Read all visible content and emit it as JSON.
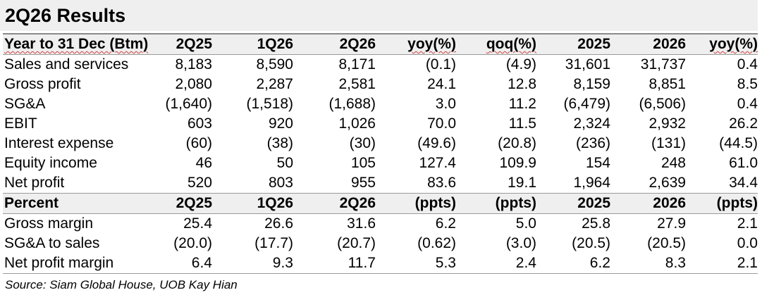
{
  "title": "2Q26 Results",
  "source": "Source: Siam Global House, UOB Kay Hian",
  "header1": [
    "Year to 31 Dec (Btm)",
    "2Q25",
    "1Q26",
    "2Q26",
    "yoy(%)",
    "qoq(%)",
    "2025",
    "2026",
    "yoy(%)"
  ],
  "rows1": [
    [
      "Sales and services",
      "8,183",
      "8,590",
      "8,171",
      "(0.1)",
      "(4.9)",
      "31,601",
      "31,737",
      "0.4"
    ],
    [
      "Gross profit",
      "2,080",
      "2,287",
      "2,581",
      "24.1",
      "12.8",
      "8,159",
      "8,851",
      "8.5"
    ],
    [
      "SG&A",
      "(1,640)",
      "(1,518)",
      "(1,688)",
      "3.0",
      "11.2",
      "(6,479)",
      "(6,506)",
      "0.4"
    ],
    [
      "EBIT",
      "603",
      "920",
      "1,026",
      "70.0",
      "11.5",
      "2,324",
      "2,932",
      "26.2"
    ],
    [
      "Interest expense",
      "(60)",
      "(38)",
      "(30)",
      "(49.6)",
      "(20.8)",
      "(236)",
      "(131)",
      "(44.5)"
    ],
    [
      "Equity income",
      "46",
      "50",
      "105",
      "127.4",
      "109.9",
      "154",
      "248",
      "61.0"
    ],
    [
      "Net profit",
      "520",
      "803",
      "955",
      "83.6",
      "19.1",
      "1,964",
      "2,639",
      "34.4"
    ]
  ],
  "header2": [
    "Percent",
    "2Q25",
    "1Q26",
    "2Q26",
    "(ppts)",
    "(ppts)",
    "2025",
    "2026",
    "(ppts)"
  ],
  "rows2": [
    [
      "Gross margin",
      "25.4",
      "26.6",
      "31.6",
      "6.2",
      "5.0",
      "25.8",
      "27.9",
      "2.1"
    ],
    [
      "SG&A to sales",
      "(20.0)",
      "(17.7)",
      "(20.7)",
      "(0.62)",
      "(3.0)",
      "(20.5)",
      "(20.5)",
      "0.0"
    ],
    [
      "Net profit margin",
      "6.4",
      "9.3",
      "11.7",
      "5.3",
      "2.4",
      "6.2",
      "8.3",
      "2.1"
    ]
  ]
}
